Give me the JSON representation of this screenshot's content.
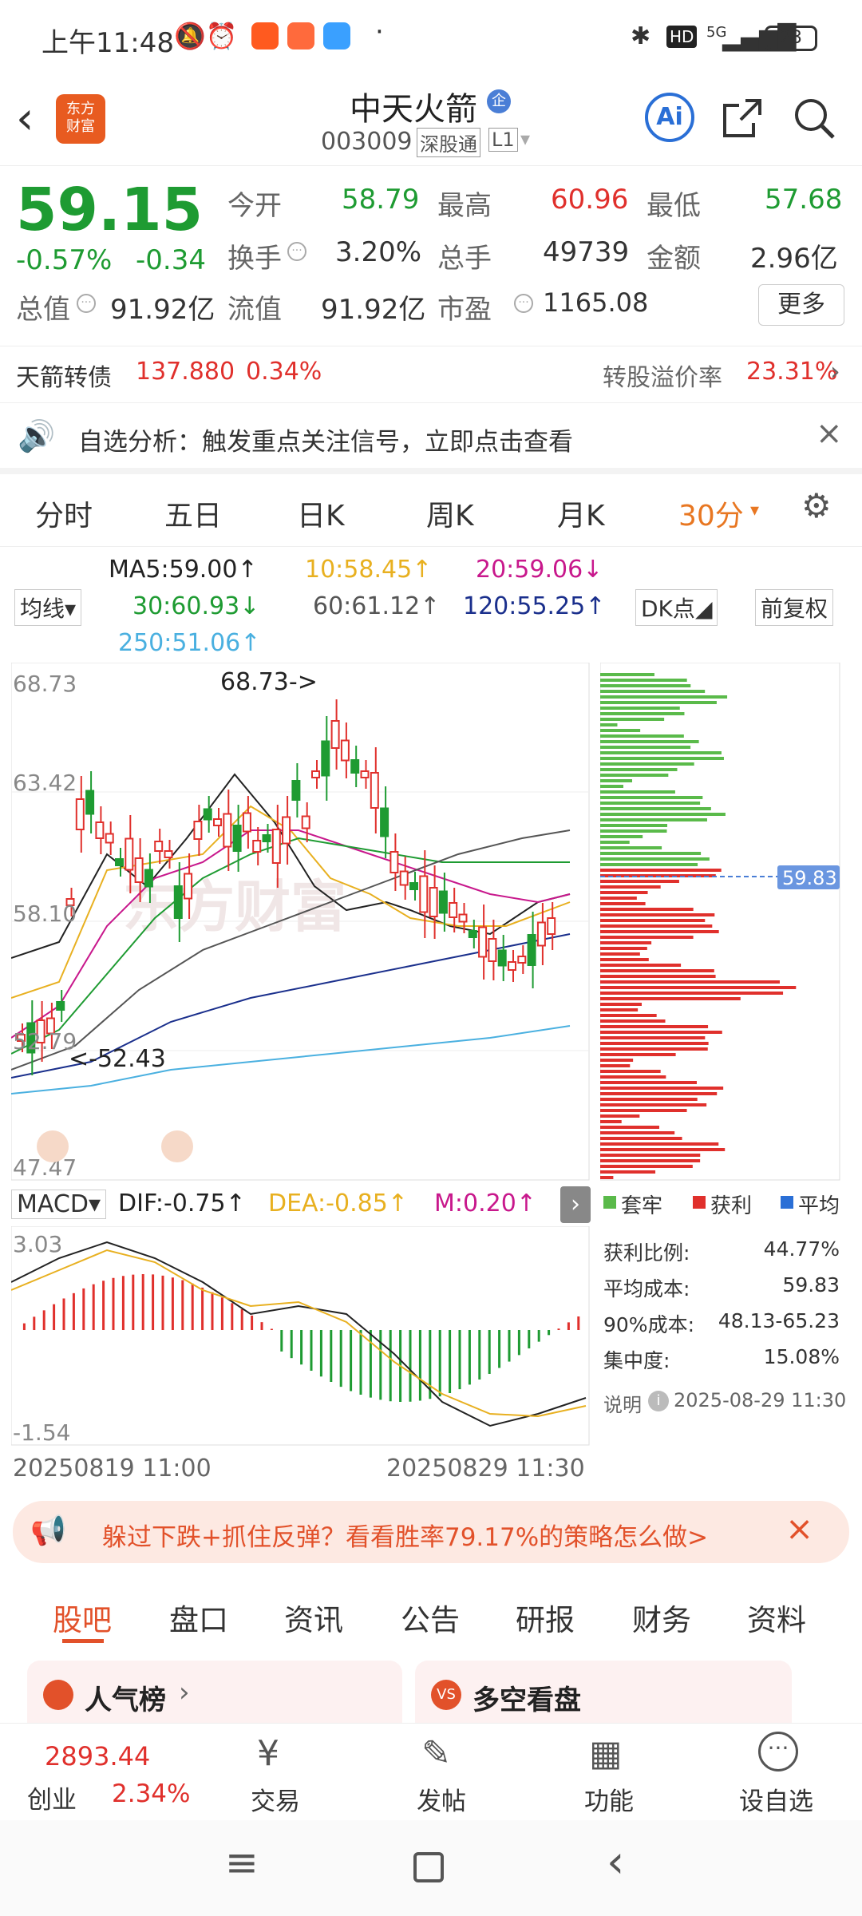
{
  "status": {
    "time": "上午11:48",
    "battery": "23",
    "net": "5G"
  },
  "header": {
    "title": "中天火箭",
    "badge": "企",
    "code": "003009",
    "tag1": "深股通",
    "tag2": "L1",
    "logo": "东方\n财富",
    "ai": "Ai"
  },
  "quote": {
    "price": "59.15",
    "pct": "-0.57%",
    "chg": "-0.34",
    "open_l": "今开",
    "open_v": "58.79",
    "high_l": "最高",
    "high_v": "60.96",
    "low_l": "最低",
    "low_v": "57.68",
    "turn_l": "换手",
    "turn_v": "3.20%",
    "vol_l": "总手",
    "vol_v": "49739",
    "amt_l": "金额",
    "amt_v": "2.96亿",
    "mcap_l": "总值",
    "mcap_v": "91.92亿",
    "float_l": "流值",
    "float_v": "91.92亿",
    "pe_l": "市盈",
    "pe_v": "1165.08",
    "more": "更多"
  },
  "bond": {
    "name": "天箭转债",
    "price": "137.880",
    "pct": "0.34%",
    "prem_l": "转股溢价率",
    "prem_v": "23.31%"
  },
  "notice": {
    "text": "自选分析：触发重点关注信号，立即点击查看"
  },
  "chart_tabs": [
    "分时",
    "五日",
    "日K",
    "周K",
    "月K",
    "30分"
  ],
  "ma": {
    "selector": "均线",
    "ma5": "MA5:59.00↑",
    "ma10": "10:58.45↑",
    "ma20": "20:59.06↓",
    "ma30": "30:60.93↓",
    "ma60": "60:61.12↑",
    "ma120": "120:55.25↑",
    "ma250": "250:51.06↑",
    "dk": "DK点",
    "fq": "前复权"
  },
  "kline": {
    "y_labels": [
      "68.73",
      "63.42",
      "58.10",
      "52.79",
      "47.47"
    ],
    "max_label": "68.73->",
    "min_label": "<-52.43",
    "watermark": "东方财富"
  },
  "macd": {
    "selector": "MACD",
    "dif": "DIF:-0.75↑",
    "dea": "DEA:-0.85↑",
    "m": "M:0.20↑",
    "top": "3.03",
    "bottom": "-1.54",
    "x_start": "20250819 11:00",
    "x_end": "20250829 11:30"
  },
  "chip": {
    "price_tag": "59.83",
    "legend": [
      "套牢",
      "获利",
      "平均"
    ],
    "stats": [
      [
        "获利比例:",
        "44.77%"
      ],
      [
        "平均成本:",
        "59.83"
      ],
      [
        "90%成本:",
        "48.13-65.23"
      ],
      [
        "集中度:",
        "15.08%"
      ]
    ],
    "note": "说明",
    "date": "2025-08-29 11:30"
  },
  "ad": {
    "text": "躲过下跌+抓住反弹？看看胜率79.17%的策略怎么做>"
  },
  "bottom_tabs": [
    "股吧",
    "盘口",
    "资讯",
    "公告",
    "研报",
    "财务",
    "资料"
  ],
  "cards": [
    "人气榜",
    "多空看盘"
  ],
  "nav": {
    "index_val": "2893.44",
    "index_name": "创业",
    "index_pct": "2.34%",
    "items": [
      "交易",
      "发帖",
      "功能",
      "设自选"
    ]
  },
  "colors": {
    "up": "#e0302c",
    "down": "#1e9b32",
    "accent": "#e87722",
    "blue": "#2a6fd6"
  },
  "chart_data": {
    "type": "candlestick",
    "ylim": [
      47.47,
      68.73
    ],
    "high": 68.73,
    "low": 52.43,
    "macd_range": [
      -1.54,
      3.03
    ],
    "chip_profit_ratio": "44.77%",
    "chip_avg_cost": 59.83
  }
}
